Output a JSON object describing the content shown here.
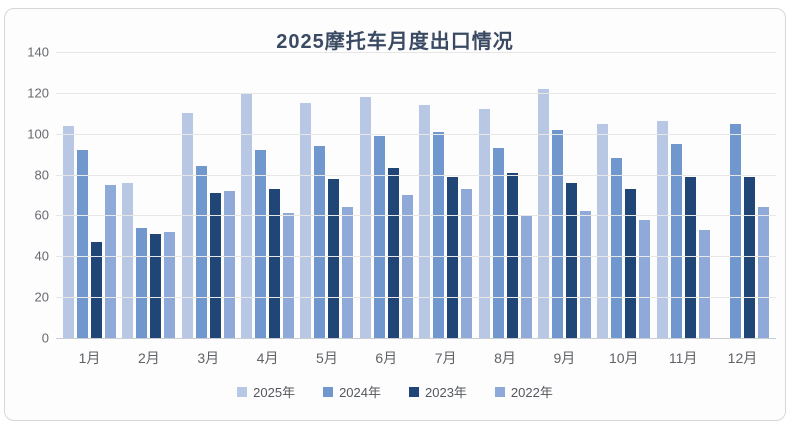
{
  "panel": {
    "title": "2025摩托车月度出口情况"
  },
  "chart_data": {
    "type": "bar",
    "title": "2025摩托车月度出口情况",
    "categories": [
      "1月",
      "2月",
      "3月",
      "4月",
      "5月",
      "6月",
      "7月",
      "8月",
      "9月",
      "10月",
      "11月",
      "12月"
    ],
    "series": [
      {
        "name": "2025年",
        "color": "#b8c7e4",
        "values": [
          104,
          76,
          110,
          120,
          115,
          118,
          114,
          112,
          122,
          105,
          106,
          null
        ]
      },
      {
        "name": "2024年",
        "color": "#7097ce",
        "values": [
          92,
          54,
          84,
          92,
          94,
          99,
          101,
          93,
          102,
          88,
          95,
          105
        ]
      },
      {
        "name": "2023年",
        "color": "#1f4677",
        "values": [
          47,
          51,
          71,
          73,
          78,
          83,
          79,
          81,
          76,
          73,
          79,
          79
        ]
      },
      {
        "name": "2022年",
        "color": "#8faad8",
        "values": [
          75,
          52,
          72,
          61,
          64,
          70,
          73,
          60,
          62,
          58,
          53,
          64
        ]
      }
    ],
    "ylim": [
      0,
      140
    ],
    "yticks": [
      0,
      20,
      40,
      60,
      80,
      100,
      120,
      140
    ],
    "grid": true,
    "legend_position": "bottom"
  }
}
